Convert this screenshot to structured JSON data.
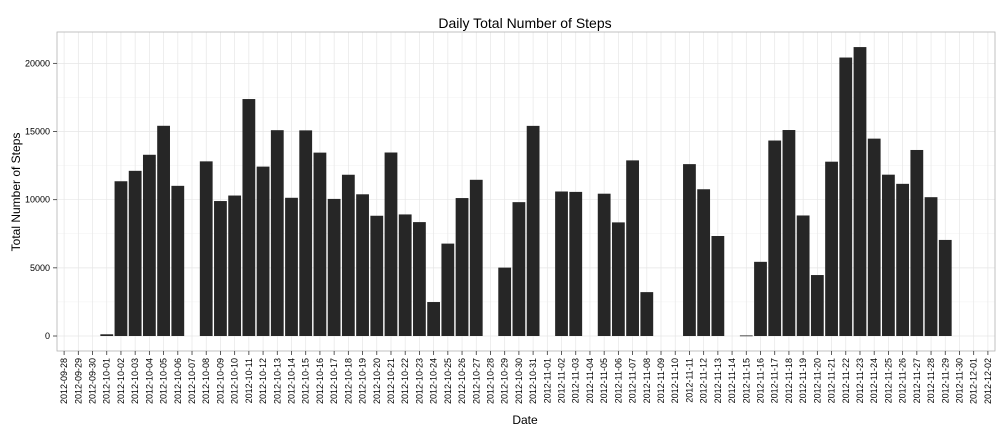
{
  "chart_data": {
    "type": "bar",
    "title": "Daily Total Number of Steps",
    "xlabel": "Date",
    "ylabel": "Total Number of Steps",
    "ylim": [
      -1100,
      22300
    ],
    "yticks": [
      0,
      5000,
      10000,
      15000,
      20000
    ],
    "ytick_labels": [
      "0",
      "5000",
      "10000",
      "15000",
      "20000"
    ],
    "grid": true,
    "bar_color": "#262626",
    "categories": [
      "2012-09-28",
      "2012-09-29",
      "2012-09-30",
      "2012-10-01",
      "2012-10-02",
      "2012-10-03",
      "2012-10-04",
      "2012-10-05",
      "2012-10-06",
      "2012-10-07",
      "2012-10-08",
      "2012-10-09",
      "2012-10-10",
      "2012-10-11",
      "2012-10-12",
      "2012-10-13",
      "2012-10-14",
      "2012-10-15",
      "2012-10-16",
      "2012-10-17",
      "2012-10-18",
      "2012-10-19",
      "2012-10-20",
      "2012-10-21",
      "2012-10-22",
      "2012-10-23",
      "2012-10-24",
      "2012-10-25",
      "2012-10-26",
      "2012-10-27",
      "2012-10-28",
      "2012-10-29",
      "2012-10-30",
      "2012-10-31",
      "2012-11-01",
      "2012-11-02",
      "2012-11-03",
      "2012-11-04",
      "2012-11-05",
      "2012-11-06",
      "2012-11-07",
      "2012-11-08",
      "2012-11-09",
      "2012-11-10",
      "2012-11-11",
      "2012-11-12",
      "2012-11-13",
      "2012-11-14",
      "2012-11-15",
      "2012-11-16",
      "2012-11-17",
      "2012-11-18",
      "2012-11-19",
      "2012-11-20",
      "2012-11-21",
      "2012-11-22",
      "2012-11-23",
      "2012-11-24",
      "2012-11-25",
      "2012-11-26",
      "2012-11-27",
      "2012-11-28",
      "2012-11-29",
      "2012-11-30",
      "2012-12-01",
      "2012-12-02"
    ],
    "bars": [
      {
        "date": "2012-10-01",
        "value": 126
      },
      {
        "date": "2012-10-02",
        "value": 11352
      },
      {
        "date": "2012-10-03",
        "value": 12116
      },
      {
        "date": "2012-10-04",
        "value": 13294
      },
      {
        "date": "2012-10-05",
        "value": 15420
      },
      {
        "date": "2012-10-06",
        "value": 11015
      },
      {
        "date": "2012-10-08",
        "value": 12811
      },
      {
        "date": "2012-10-09",
        "value": 9900
      },
      {
        "date": "2012-10-10",
        "value": 10304
      },
      {
        "date": "2012-10-11",
        "value": 17382
      },
      {
        "date": "2012-10-12",
        "value": 12426
      },
      {
        "date": "2012-10-13",
        "value": 15098
      },
      {
        "date": "2012-10-14",
        "value": 10139
      },
      {
        "date": "2012-10-15",
        "value": 15084
      },
      {
        "date": "2012-10-16",
        "value": 13452
      },
      {
        "date": "2012-10-17",
        "value": 10056
      },
      {
        "date": "2012-10-18",
        "value": 11829
      },
      {
        "date": "2012-10-19",
        "value": 10395
      },
      {
        "date": "2012-10-20",
        "value": 8821
      },
      {
        "date": "2012-10-21",
        "value": 13460
      },
      {
        "date": "2012-10-22",
        "value": 8918
      },
      {
        "date": "2012-10-23",
        "value": 8355
      },
      {
        "date": "2012-10-24",
        "value": 2492
      },
      {
        "date": "2012-10-25",
        "value": 6778
      },
      {
        "date": "2012-10-26",
        "value": 10119
      },
      {
        "date": "2012-10-27",
        "value": 11458
      },
      {
        "date": "2012-10-29",
        "value": 5018
      },
      {
        "date": "2012-10-30",
        "value": 9819
      },
      {
        "date": "2012-10-31",
        "value": 15414
      },
      {
        "date": "2012-11-02",
        "value": 10600
      },
      {
        "date": "2012-11-03",
        "value": 10571
      },
      {
        "date": "2012-11-05",
        "value": 10439
      },
      {
        "date": "2012-11-06",
        "value": 8334
      },
      {
        "date": "2012-11-07",
        "value": 12883
      },
      {
        "date": "2012-11-08",
        "value": 3219
      },
      {
        "date": "2012-11-11",
        "value": 12608
      },
      {
        "date": "2012-11-12",
        "value": 10765
      },
      {
        "date": "2012-11-13",
        "value": 7336
      },
      {
        "date": "2012-11-15",
        "value": 41
      },
      {
        "date": "2012-11-16",
        "value": 5441
      },
      {
        "date": "2012-11-17",
        "value": 14339
      },
      {
        "date": "2012-11-18",
        "value": 15110
      },
      {
        "date": "2012-11-19",
        "value": 8841
      },
      {
        "date": "2012-11-20",
        "value": 4472
      },
      {
        "date": "2012-11-21",
        "value": 12787
      },
      {
        "date": "2012-11-22",
        "value": 20427
      },
      {
        "date": "2012-11-23",
        "value": 21194
      },
      {
        "date": "2012-11-24",
        "value": 14478
      },
      {
        "date": "2012-11-25",
        "value": 11834
      },
      {
        "date": "2012-11-26",
        "value": 11162
      },
      {
        "date": "2012-11-27",
        "value": 13646
      },
      {
        "date": "2012-11-28",
        "value": 10183
      },
      {
        "date": "2012-11-29",
        "value": 7047
      }
    ]
  }
}
